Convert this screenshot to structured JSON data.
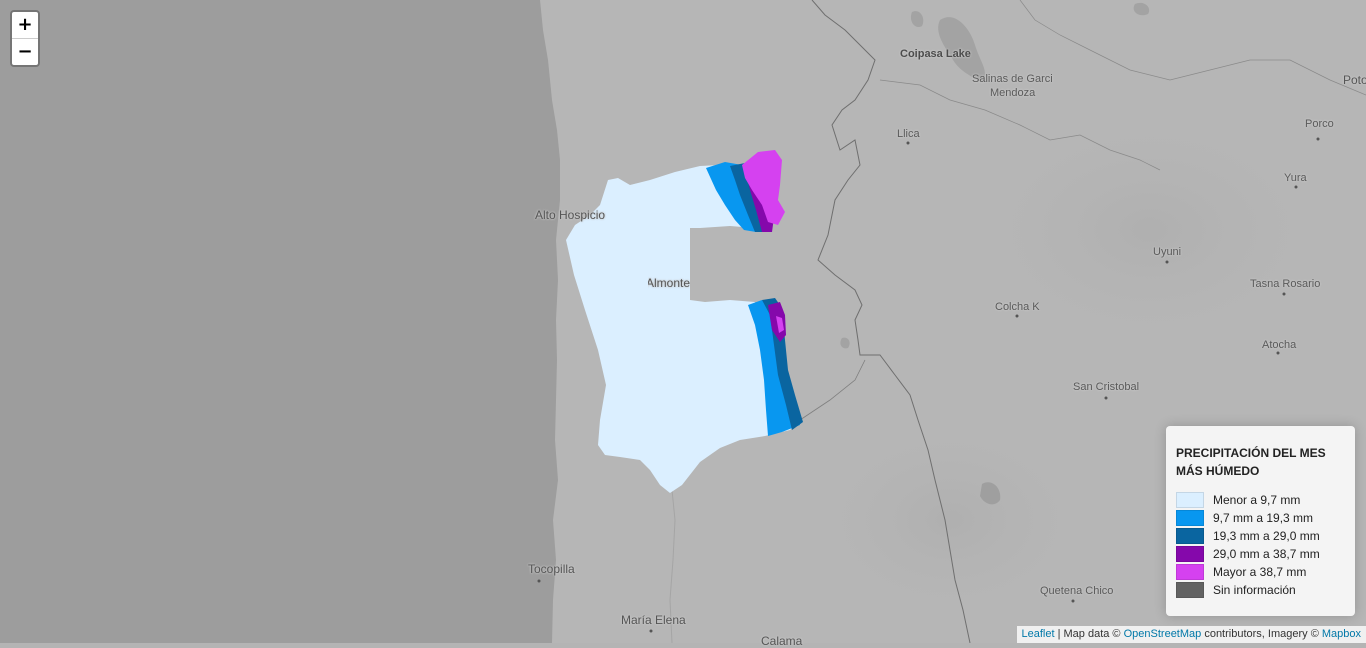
{
  "map": {
    "colors": {
      "ocean": "#9b9b9b",
      "land": "#b4b4b4",
      "border": "#6f6f6f"
    },
    "places": [
      {
        "name": "Coipasa Lake",
        "style": "bold"
      },
      {
        "name": "Salinas de Garci",
        "style": "normal"
      },
      {
        "name": "Mendoza",
        "style": "normal"
      },
      {
        "name": "Llica",
        "style": "normal"
      },
      {
        "name": "Poto",
        "style": "big"
      },
      {
        "name": "Porco",
        "style": "normal"
      },
      {
        "name": "Yura",
        "style": "normal"
      },
      {
        "name": "Uyuni",
        "style": "normal"
      },
      {
        "name": "Tasna Rosario",
        "style": "normal"
      },
      {
        "name": "Colcha K",
        "style": "normal"
      },
      {
        "name": "Atocha",
        "style": "normal"
      },
      {
        "name": "San Cristobal",
        "style": "normal"
      },
      {
        "name": "Alto Hospicio",
        "style": "big"
      },
      {
        "name": "Pozo Almonte",
        "style": "big"
      },
      {
        "name": "Tocopilla",
        "style": "big"
      },
      {
        "name": "María Elena",
        "style": "big"
      },
      {
        "name": "Calama",
        "style": "big"
      },
      {
        "name": "Quetena Chico",
        "style": "normal"
      }
    ]
  },
  "zoom": {
    "in_label": "+",
    "out_label": "−"
  },
  "legend": {
    "title": "PRECIPITACIÓN DEL MES MÁS HÚMEDO",
    "items": [
      {
        "label": "Menor a 9,7 mm",
        "color": "#dbefff"
      },
      {
        "label": "9,7 mm a 19,3 mm",
        "color": "#0897f0"
      },
      {
        "label": "19,3 mm a 29,0 mm",
        "color": "#0a65a0"
      },
      {
        "label": "29,0 mm a 38,7 mm",
        "color": "#8508ab"
      },
      {
        "label": "Mayor a 38,7 mm",
        "color": "#d541f0"
      },
      {
        "label": "Sin información",
        "color": "#626262"
      }
    ]
  },
  "attribution": {
    "leaflet": "Leaflet",
    "sep": " | Map data © ",
    "osm": "OpenStreetMap",
    "mid": " contributors, Imagery © ",
    "mapbox": "Mapbox"
  }
}
